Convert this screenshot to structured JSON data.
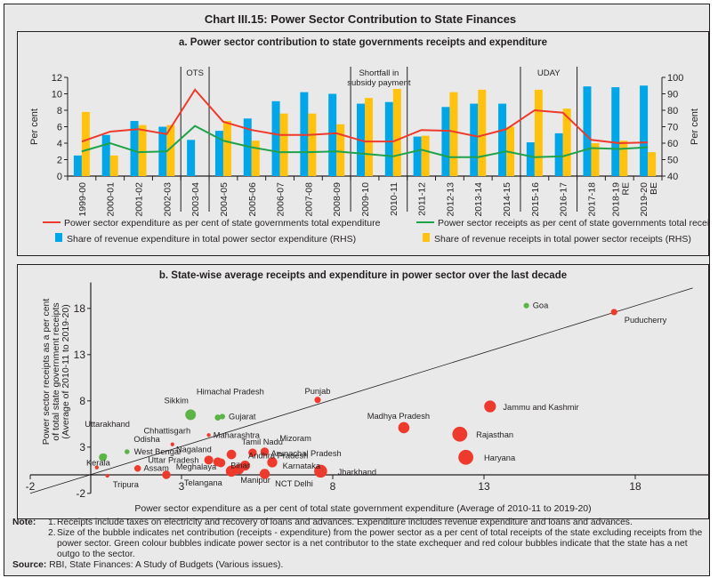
{
  "title": "Chart III.15: Power Sector Contribution to State Finances",
  "chart_data": [
    {
      "type": "bar",
      "title": "a. Power sector contribution to state governments receipts and expenditure",
      "ylabel": "Per cent",
      "y2label": "Per cent",
      "ylim": [
        0,
        12
      ],
      "yticks": [
        0,
        2,
        4,
        6,
        8,
        10,
        12
      ],
      "y2lim": [
        40,
        100
      ],
      "y2ticks": [
        40,
        50,
        60,
        70,
        80,
        90,
        100
      ],
      "categories": [
        "1999-00",
        "2000-01",
        "2001-02",
        "2002-03",
        "2003-04",
        "2004-05",
        "2005-06",
        "2006-07",
        "2007-08",
        "2008-09",
        "2009-10",
        "2010-11",
        "2011-12",
        "2012-13",
        "2013-14",
        "2014-15",
        "2015-16",
        "2016-17",
        "2017-18",
        "2018-19 RE",
        "2019-20 BE"
      ],
      "category_lines": [
        [
          "1999-00"
        ],
        [
          "2000-01"
        ],
        [
          "2001-02"
        ],
        [
          "2002-03"
        ],
        [
          "2003-04"
        ],
        [
          "2004-05"
        ],
        [
          "2005-06"
        ],
        [
          "2006-07"
        ],
        [
          "2007-08"
        ],
        [
          "2008-09"
        ],
        [
          "2009-10"
        ],
        [
          "2010-11"
        ],
        [
          "2011-12"
        ],
        [
          "2012-13"
        ],
        [
          "2013-14"
        ],
        [
          "2014-15"
        ],
        [
          "2015-16"
        ],
        [
          "2016-17"
        ],
        [
          "2017-18"
        ],
        [
          "2018-19",
          "RE"
        ],
        [
          "2019-20",
          "BE"
        ]
      ],
      "series": [
        {
          "name": "Share of revenue expenditure in total power sector expenditure (RHS)",
          "kind": "bar",
          "axis": "right",
          "color": "#00a6e8",
          "values": [
            52.5,
            65,
            73.5,
            70,
            62,
            67.5,
            75,
            85.5,
            91,
            90,
            84,
            85,
            64,
            82,
            84,
            84,
            60.5,
            66,
            94.5,
            94,
            95
          ]
        },
        {
          "name": "Share of revenue receipts in total power sector receipts (RHS)",
          "kind": "bar",
          "axis": "right",
          "color": "#ffc20e",
          "values": [
            79,
            52.5,
            71,
            71,
            null,
            73.5,
            61.5,
            78,
            78,
            71.5,
            87.5,
            93,
            64.5,
            91,
            92.5,
            70,
            92.5,
            81,
            60,
            61.5,
            54.5
          ]
        },
        {
          "name": "Power sector expenditure as per cent of state governments total expenditure",
          "kind": "line",
          "axis": "left",
          "color": "#ee3a2c",
          "values": [
            4.2,
            5.4,
            5.7,
            5.1,
            10.5,
            6.6,
            5.6,
            5.0,
            5.0,
            5.2,
            4.2,
            4.2,
            5.6,
            5.5,
            4.8,
            5.7,
            8.0,
            7.7,
            4.4,
            4.0,
            4.1
          ]
        },
        {
          "name": "Power sector receipts as per cent of state governments total receipts",
          "kind": "line",
          "axis": "left",
          "color": "#1fa24a",
          "values": [
            3.0,
            4.0,
            2.9,
            3.0,
            6.1,
            4.3,
            3.5,
            2.9,
            2.9,
            3.0,
            2.7,
            2.4,
            3.2,
            2.3,
            2.3,
            3.0,
            2.3,
            2.4,
            3.4,
            3.3,
            3.5
          ]
        }
      ],
      "annotations": [
        {
          "label": [
            "OTS"
          ],
          "from": "2003-04",
          "to": "2003-04"
        },
        {
          "label": [
            "Shortfall in",
            "subsidy payment"
          ],
          "from": "2009-10",
          "to": "2010-11"
        },
        {
          "label": [
            "UDAY"
          ],
          "from": "2015-16",
          "to": "2016-17"
        }
      ],
      "separators_after": [
        "2002-03",
        "2003-04",
        "2008-09",
        "2010-11",
        "2014-15",
        "2016-17"
      ],
      "legend": [
        {
          "label": "Power sector expenditure as per cent of state governments total expenditure",
          "symbol": "line",
          "color": "#ee3a2c"
        },
        {
          "label": "Power sector receipts as per cent of state governments total receipts",
          "symbol": "line",
          "color": "#1fa24a"
        },
        {
          "label": "Share of revenue expenditure in total power sector expenditure (RHS)",
          "symbol": "square",
          "color": "#00a6e8"
        },
        {
          "label": "Share of revenue receipts in total power sector receipts (RHS)",
          "symbol": "square",
          "color": "#ffc20e"
        }
      ],
      "legend_position": "bottom",
      "grid": false
    },
    {
      "type": "scatter",
      "title": "b. State-wise average receipts and expenditure in power sector over the last decade",
      "xlabel": "Power sector expenditure as a per cent of total state government expenditure (Average of 2010-11 to 2019-20)",
      "ylabel_lines": [
        "Power sector receipts as a per cent",
        "of total state government receipts",
        "(Average of 2010-11 to 2019-20)"
      ],
      "xlim": [
        -2,
        20
      ],
      "xticks": [
        -2,
        3,
        8,
        13,
        18
      ],
      "ylim": [
        -2,
        20
      ],
      "yticks": [
        -2,
        3,
        8,
        13,
        18
      ],
      "reference_line": "y = x",
      "grid": false,
      "colors": {
        "net_contributor": "#5cb447",
        "net_outgo": "#ee3a2c"
      },
      "points": [
        {
          "name": "Goa",
          "x": 14.4,
          "y": 18.3,
          "type": "net_contributor",
          "size": 1
        },
        {
          "name": "Puducherry",
          "x": 17.3,
          "y": 17.6,
          "type": "net_outgo",
          "size": 1.3
        },
        {
          "name": "Sikkim",
          "x": 3.3,
          "y": 6.5,
          "type": "net_contributor",
          "size": 2.8
        },
        {
          "name": "Himachal Pradesh",
          "x": 4.2,
          "y": 6.2,
          "type": "net_contributor",
          "size": 1.2
        },
        {
          "name": "Gujarat",
          "x": 4.35,
          "y": 6.3,
          "type": "net_contributor",
          "size": 1
        },
        {
          "name": "Uttarakhand",
          "x": 0.4,
          "y": 1.9,
          "type": "net_contributor",
          "size": 1.8
        },
        {
          "name": "Odisha",
          "x": 0.45,
          "y": 2.0,
          "type": "net_contributor",
          "size": 1
        },
        {
          "name": "West Bengal",
          "x": 1.2,
          "y": 2.5,
          "type": "net_contributor",
          "size": 0.8
        },
        {
          "name": "Chhattisgarh",
          "x": 2.7,
          "y": 3.3,
          "type": "net_outgo",
          "size": 0.4
        },
        {
          "name": "Maharashtra",
          "x": 3.9,
          "y": 4.3,
          "type": "net_outgo",
          "size": 0.4
        },
        {
          "name": "Punjab",
          "x": 7.5,
          "y": 8.1,
          "type": "net_outgo",
          "size": 1.3
        },
        {
          "name": "Kerala",
          "x": 0.2,
          "y": 0.8,
          "type": "net_outgo",
          "size": 0.4
        },
        {
          "name": "Tripura",
          "x": 0.55,
          "y": -0.1,
          "type": "net_outgo",
          "size": 0.4
        },
        {
          "name": "Assam",
          "x": 1.55,
          "y": 0.7,
          "type": "net_outgo",
          "size": 1.4
        },
        {
          "name": "Meghalaya",
          "x": 2.5,
          "y": 0.0,
          "type": "net_outgo",
          "size": 2.0
        },
        {
          "name": "Uttar Pradesh",
          "x": 3.9,
          "y": 1.6,
          "type": "net_outgo",
          "size": 2.2
        },
        {
          "name": "Nagaland",
          "x": 4.2,
          "y": 1.4,
          "type": "net_outgo",
          "size": 2.2
        },
        {
          "name": "Bihar",
          "x": 4.3,
          "y": 1.3,
          "type": "net_outgo",
          "size": 2.2
        },
        {
          "name": "Tamil Nadu",
          "x": 4.65,
          "y": 2.2,
          "type": "net_outgo",
          "size": 2.4
        },
        {
          "name": "Arunachal Pradesh",
          "x": 5.35,
          "y": 2.4,
          "type": "net_outgo",
          "size": 2.0
        },
        {
          "name": "Mizoram",
          "x": 5.75,
          "y": 2.5,
          "type": "net_outgo",
          "size": 2.0
        },
        {
          "name": "Andhra Pradesh",
          "x": 5.1,
          "y": 1.0,
          "type": "net_outgo",
          "size": 2.6
        },
        {
          "name": "Karnataka",
          "x": 6.0,
          "y": 1.35,
          "type": "net_outgo",
          "size": 2.6
        },
        {
          "name": "NCT Delhi",
          "x": 5.75,
          "y": 0.1,
          "type": "net_outgo",
          "size": 2.6
        },
        {
          "name": "Telangana",
          "x": 4.65,
          "y": 0.4,
          "type": "net_outgo",
          "size": 3.0
        },
        {
          "name": "Manipur",
          "x": 4.9,
          "y": 0.6,
          "type": "net_outgo",
          "size": 2.6
        },
        {
          "name": "Jharkhand",
          "x": 7.6,
          "y": 0.4,
          "type": "net_outgo",
          "size": 3.6
        },
        {
          "name": "Madhya Pradesh",
          "x": 10.35,
          "y": 5.1,
          "type": "net_outgo",
          "size": 3.0
        },
        {
          "name": "Jammu and Kashmir",
          "x": 13.2,
          "y": 7.4,
          "type": "net_outgo",
          "size": 3.2
        },
        {
          "name": "Rajasthan",
          "x": 12.2,
          "y": 4.4,
          "type": "net_outgo",
          "size": 4.3
        },
        {
          "name": "Haryana",
          "x": 12.4,
          "y": 1.9,
          "type": "net_outgo",
          "size": 4.3
        }
      ]
    }
  ],
  "notes": {
    "label": "Note:",
    "items": [
      {
        "num": "1.",
        "text": "Receipts include taxes on electricity and recovery of loans and advances. Expenditure includes revenue expenditure and loans and advances."
      },
      {
        "num": "2.",
        "text": "Size of the bubble indicates net contribution (receipts - expenditure) from the power sector as a per cent of total receipts of the state excluding receipts from the power sector. Green colour bubbles indicate power sector is a net contributor to the state exchequer and red colour bubbles indicate that the state has a net outgo to the sector."
      }
    ]
  },
  "source": {
    "label": "Source:",
    "text": "RBI, State Finances: A Study of Budgets (Various issues)."
  }
}
